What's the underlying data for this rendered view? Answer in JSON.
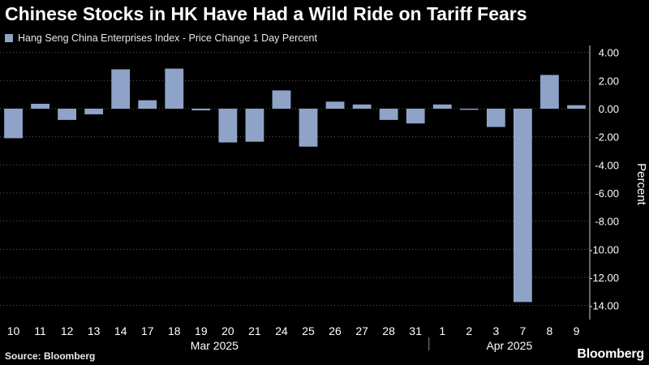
{
  "title": "Chinese Stocks in HK Have Had a Wild Ride on Tariff Fears",
  "legend": {
    "label": "Hang Seng China Enterprises Index - Price Change 1 Day Percent"
  },
  "source": "Source: Bloomberg",
  "logo": "Bloomberg",
  "colors": {
    "bar": "#8fa3c8",
    "grid": "#5a5a5a",
    "background": "#000000",
    "text": "#ffffff"
  },
  "chart_data": {
    "type": "bar",
    "title": "Chinese Stocks in HK Have Had a Wild Ride on Tariff Fears",
    "ylabel": "Percent",
    "ylim": [
      -15,
      4.5
    ],
    "yticks": [
      4,
      2,
      0,
      -2,
      -4,
      -6,
      -8,
      -10,
      -12,
      -14
    ],
    "ytick_labels": [
      "4.00",
      "2.00",
      "0.00",
      "-2.00",
      "-4.00",
      "-6.00",
      "-8.00",
      "-10.00",
      "-12.00",
      "-14.00"
    ],
    "categories": [
      "10",
      "11",
      "12",
      "13",
      "14",
      "17",
      "18",
      "19",
      "20",
      "21",
      "24",
      "25",
      "26",
      "27",
      "28",
      "31",
      "1",
      "2",
      "3",
      "7",
      "8",
      "9"
    ],
    "groups": [
      {
        "label": "Mar 2025",
        "from": 0,
        "to": 15
      },
      {
        "label": "Apr 2025",
        "from": 16,
        "to": 21
      }
    ],
    "series": [
      {
        "name": "Hang Seng China Enterprises Index - Price Change 1 Day Percent",
        "values": [
          -2.1,
          0.35,
          -0.8,
          -0.4,
          2.8,
          0.6,
          2.85,
          -0.12,
          -2.4,
          -2.35,
          1.3,
          -2.7,
          0.5,
          0.3,
          -0.8,
          -1.05,
          0.3,
          -0.08,
          -1.3,
          -13.75,
          2.4,
          0.25
        ]
      }
    ],
    "grid": true,
    "legend_position": "top-left"
  }
}
